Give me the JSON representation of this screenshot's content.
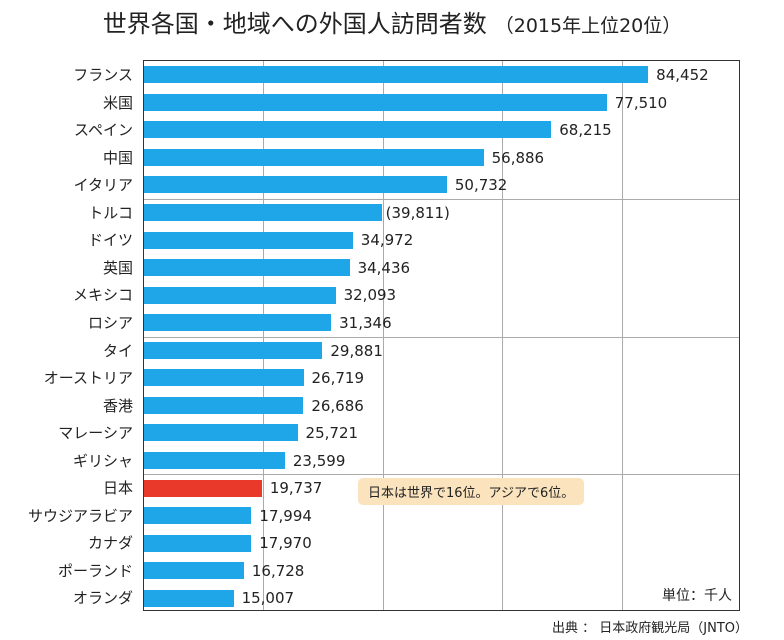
{
  "chart_data": {
    "type": "bar",
    "orientation": "horizontal",
    "title": "世界各国・地域への外国人訪問者数",
    "subtitle": "（2015年上位20位）",
    "categories": [
      "フランス",
      "米国",
      "スペイン",
      "中国",
      "イタリア",
      "トルコ",
      "ドイツ",
      "英国",
      "メキシコ",
      "ロシア",
      "タイ",
      "オーストリア",
      "香港",
      "マレーシア",
      "ギリシャ",
      "日本",
      "サウジアラビア",
      "カナダ",
      "ポーランド",
      "オランダ"
    ],
    "values": [
      84452,
      77510,
      68215,
      56886,
      50732,
      39811,
      34972,
      34436,
      32093,
      31346,
      29881,
      26719,
      26686,
      25721,
      23599,
      19737,
      17994,
      17970,
      16728,
      15007
    ],
    "labels": [
      "84,452",
      "77,510",
      "68,215",
      "56,886",
      "50,732",
      "(39,811)",
      "34,972",
      "34,436",
      "32,093",
      "31,346",
      "29,881",
      "26,719",
      "26,686",
      "25,721",
      "23,599",
      "19,737",
      "17,994",
      "17,970",
      "16,728",
      "15,007"
    ],
    "highlight": "日本",
    "xlim": [
      0,
      100000
    ],
    "grid": true,
    "annotation": "日本は世界で16位。アジアで6位。",
    "unit": "単位：千人",
    "source": "出典 ： 日本政府観光局（JNTO）",
    "colors": {
      "bar": "#1ea6e8",
      "highlight": "#e8392a"
    }
  }
}
